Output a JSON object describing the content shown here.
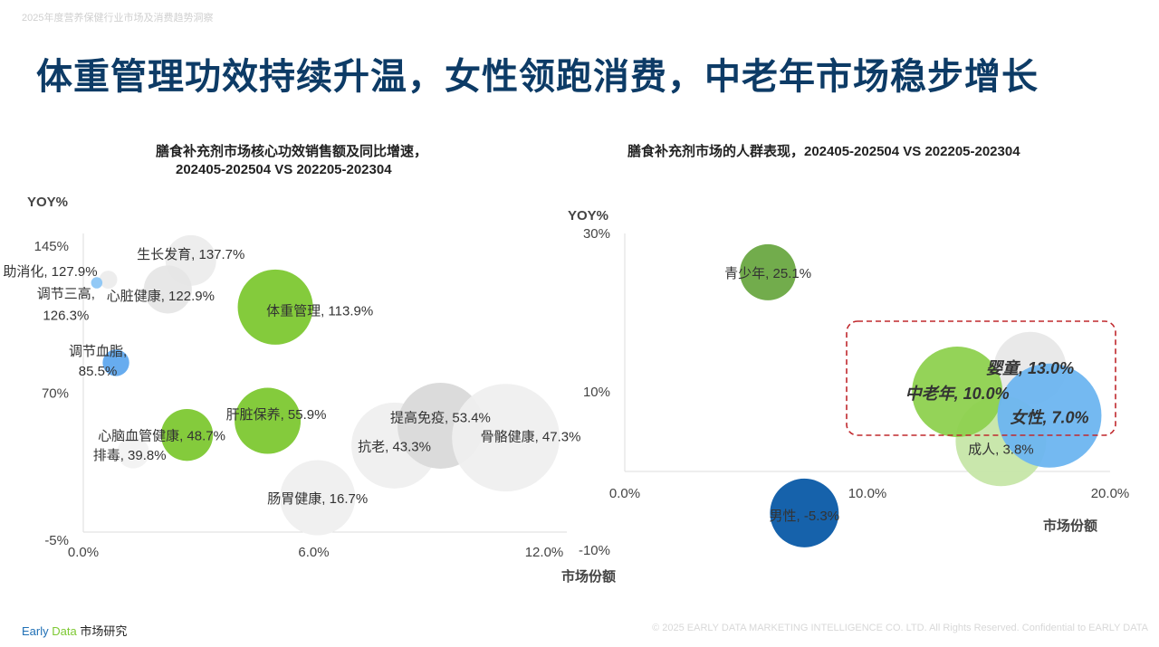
{
  "header": {
    "subtitle": "2025年度营养保健行业市场及消费趋势洞察",
    "title": "体重管理功效持续升温，女性领跑消费，中老年市场稳步增长"
  },
  "chart_data": [
    {
      "type": "scatter",
      "title_line1": "膳食补充剂市场核心功效销售额及同比增速，",
      "title_line2": "202405-202504 VS 202205-202304",
      "ylabel": "YOY%",
      "xlabel": "市场份额",
      "xlim": [
        0,
        12.5
      ],
      "ylim": [
        -5,
        150
      ],
      "xticks": [
        "0.0%",
        "6.0%",
        "12.0%"
      ],
      "xtick_values": [
        0,
        6,
        12
      ],
      "yticks": [
        "145%",
        "70%",
        "-5%"
      ],
      "ytick_values": [
        145,
        70,
        -5
      ],
      "points": [
        {
          "label": "生长发育, 137.7%",
          "x": 2.8,
          "y": 137.7,
          "size": 4,
          "color": "#ececec"
        },
        {
          "label": "助消化, 127.9%",
          "x": 0.65,
          "y": 127.9,
          "size": 0.5,
          "color": "#ececec"
        },
        {
          "label": "调节三高, 126.3%",
          "x": 0.35,
          "y": 126.3,
          "size": 0.2,
          "color": "#8cc6f5"
        },
        {
          "label": "心脏健康, 122.9%",
          "x": 2.2,
          "y": 122.9,
          "size": 3.6,
          "color": "#e6e6e6"
        },
        {
          "label": "体重管理, 113.9%",
          "x": 5.0,
          "y": 113.9,
          "size": 8.8,
          "color": "#7dc832"
        },
        {
          "label": "调节血脂, 85.5%",
          "x": 0.85,
          "y": 85.5,
          "size": 1.1,
          "color": "#5fa8ee"
        },
        {
          "label": "排毒, 39.8%",
          "x": 1.3,
          "y": 39.8,
          "size": 1.6,
          "color": "#f2f2f2"
        },
        {
          "label": "心脑血管健康, 48.7%",
          "x": 2.7,
          "y": 48.7,
          "size": 4.2,
          "color": "#7dc832"
        },
        {
          "label": "肝脏保养, 55.9%",
          "x": 4.8,
          "y": 55.9,
          "size": 6.8,
          "color": "#7dc832"
        },
        {
          "label": "肠胃健康, 16.7%",
          "x": 6.1,
          "y": 16.7,
          "size": 8.8,
          "color": "#efefef"
        },
        {
          "label": "抗老, 43.3%",
          "x": 8.1,
          "y": 43.3,
          "size": 11.5,
          "color": "#efefef"
        },
        {
          "label": "提高免疫, 53.4%",
          "x": 9.3,
          "y": 53.4,
          "size": 11.5,
          "color": "#d9d9d9"
        },
        {
          "label": "骨骼健康, 47.3%",
          "x": 11.0,
          "y": 47.3,
          "size": 18,
          "color": "#efefef"
        }
      ]
    },
    {
      "type": "scatter",
      "title_line1": "膳食补充剂市场的人群表现，202405-202504 VS 202205-202304",
      "ylabel": "YOY%",
      "xlabel": "市场份额",
      "xlim": [
        0,
        20
      ],
      "ylim": [
        -10,
        30
      ],
      "xticks": [
        "0.0%",
        "10.0%",
        "20.0%"
      ],
      "xtick_values": [
        0,
        10,
        20
      ],
      "yticks": [
        "30%",
        "10%",
        "-10%"
      ],
      "ytick_values": [
        30,
        10,
        -10
      ],
      "points": [
        {
          "label": "青少年, 25.1%",
          "x": 5.9,
          "y": 25.1,
          "size": 9.6,
          "color": "#6aa842",
          "bold": false
        },
        {
          "label": "婴童, 13.0%",
          "x": 16.7,
          "y": 13.0,
          "size": 16,
          "color": "#e8e8e8",
          "bold": true
        },
        {
          "label": "成人, 3.8%",
          "x": 15.5,
          "y": 3.8,
          "size": 25,
          "color": "#c6e6a8",
          "bold": false
        },
        {
          "label": "中老年, 10.0%",
          "x": 13.7,
          "y": 10.0,
          "size": 25,
          "color": "#8ed14f",
          "bold": true
        },
        {
          "label": "女性, 7.0%",
          "x": 17.5,
          "y": 7.0,
          "size": 33,
          "color": "#6db5f0",
          "bold": true
        },
        {
          "label": "男性, -5.3%",
          "x": 7.4,
          "y": -5.3,
          "size": 14.4,
          "color": "#0a5aa6",
          "bold": false
        }
      ],
      "highlight": "中老年 / 婴童 / 女性"
    }
  ],
  "footer": {
    "brand_early": "Early",
    "brand_data": "Data",
    "brand_cn": "市场研究",
    "copyright": "© 2025 EARLY DATA MARKETING INTELLIGENCE CO. LTD. All Rights Reserved. Confidential to EARLY DATA",
    "early_color": "#1f6fb5",
    "data_color": "#7dc832"
  }
}
